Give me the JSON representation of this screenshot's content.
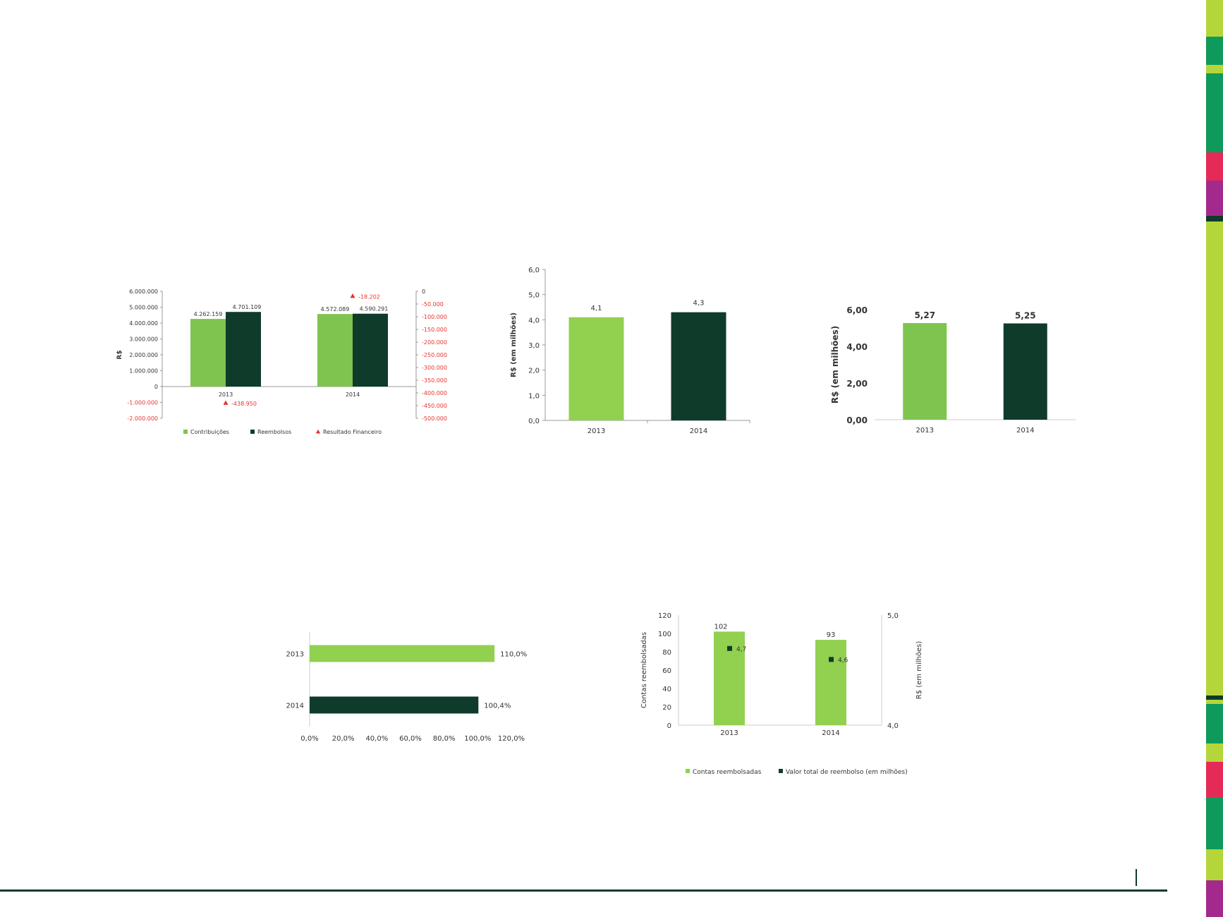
{
  "colors": {
    "light_green": "#7fc44e",
    "light_green_2": "#92d050",
    "dark_green": "#0e3b2a",
    "red": "#e8332c",
    "axis": "#999999",
    "rule": "#0e3b2a"
  },
  "side_stripe": [
    {
      "color": "#b5d63a",
      "h": 52
    },
    {
      "color": "#0e9a5a",
      "h": 40
    },
    {
      "color": "#b5d63a",
      "h": 12
    },
    {
      "color": "#0e9a5a",
      "h": 112
    },
    {
      "color": "#e52a58",
      "h": 40
    },
    {
      "color": "#a32a8c",
      "h": 50
    },
    {
      "color": "#0e3b2a",
      "h": 8
    },
    {
      "color": "#b5d63a",
      "h": 672
    },
    {
      "color": "#0e3b2a",
      "h": 6
    },
    {
      "color": "#b5d63a",
      "h": 6
    },
    {
      "color": "#0e9a5a",
      "h": 56
    },
    {
      "color": "#b5d63a",
      "h": 26
    },
    {
      "color": "#e52a58",
      "h": 50
    },
    {
      "color": "#0e9a5a",
      "h": 74
    },
    {
      "color": "#b5d63a",
      "h": 44
    },
    {
      "color": "#a32a8c",
      "h": 52
    }
  ],
  "chart_data": [
    {
      "type": "bar",
      "categories": [
        "2013",
        "2014"
      ],
      "series": [
        {
          "name": "Contribuições",
          "values": [
            4262159,
            4572089
          ],
          "labels": [
            "4.262.159",
            "4.572.089"
          ]
        },
        {
          "name": "Reembolsos",
          "values": [
            4701109,
            4590291
          ],
          "labels": [
            "4.701.109",
            "4.590.291"
          ]
        }
      ],
      "secondary": {
        "name": "Resultado Financeiro",
        "values": [
          -438950,
          -18202
        ],
        "labels": [
          "-438.950",
          "-18.202"
        ]
      },
      "ylabel": "R$",
      "ylim": [
        -2000000,
        6000000
      ],
      "y_ticks": [
        "-2.000.000",
        "-1.000.000",
        "0",
        "1.000.000",
        "2.000.000",
        "3.000.000",
        "4.000.000",
        "5.000.000",
        "6.000.000"
      ],
      "y2lim": [
        -500000,
        0
      ],
      "y2_ticks": [
        "0",
        "-50.000",
        "-100.000",
        "-150.000",
        "-200.000",
        "-250.000",
        "-300.000",
        "-350.000",
        "-400.000",
        "-450.000",
        "-500.000"
      ],
      "legend": "bottom"
    },
    {
      "type": "bar",
      "categories": [
        "2013",
        "2014"
      ],
      "values": [
        4.1,
        4.3
      ],
      "labels": [
        "4,1",
        "4,3"
      ],
      "ylabel": "R$ (em milhões)",
      "ylim": [
        0,
        6
      ],
      "y_ticks": [
        "0,0",
        "1,0",
        "2,0",
        "3,0",
        "4,0",
        "5,0",
        "6,0"
      ]
    },
    {
      "type": "bar",
      "categories": [
        "2013",
        "2014"
      ],
      "values": [
        5.27,
        5.25
      ],
      "labels": [
        "5,27",
        "5,25"
      ],
      "ylabel": "R$ (em milhões)",
      "ylim": [
        0,
        6
      ],
      "y_ticks": [
        "0,00",
        "2,00",
        "4,00",
        "6,00"
      ]
    },
    {
      "type": "bar",
      "orientation": "horizontal",
      "categories": [
        "2013",
        "2014"
      ],
      "values": [
        110.0,
        100.4
      ],
      "labels": [
        "110,0%",
        "100,4%"
      ],
      "xlim": [
        0,
        120
      ],
      "x_ticks": [
        "0,0%",
        "20,0%",
        "40,0%",
        "60,0%",
        "80,0%",
        "100,0%",
        "120,0%"
      ]
    },
    {
      "type": "bar",
      "categories": [
        "2013",
        "2014"
      ],
      "series": [
        {
          "name": "Contas reembolsadas",
          "values": [
            102,
            93
          ],
          "labels": [
            "102",
            "93"
          ]
        }
      ],
      "secondary": {
        "name": "Valor total de reembolso (em milhões)",
        "values": [
          4.7,
          4.6
        ],
        "labels": [
          "4,7",
          "4,6"
        ]
      },
      "ylabel": "Contas reembolsadas",
      "y2label": "R$ (em milhões)",
      "ylim": [
        0,
        120
      ],
      "y_ticks": [
        "0",
        "20",
        "40",
        "60",
        "80",
        "100",
        "120"
      ],
      "y2lim": [
        4.0,
        5.0
      ],
      "y2_ticks": [
        "4,0",
        "5,0"
      ],
      "legend": "bottom"
    }
  ]
}
